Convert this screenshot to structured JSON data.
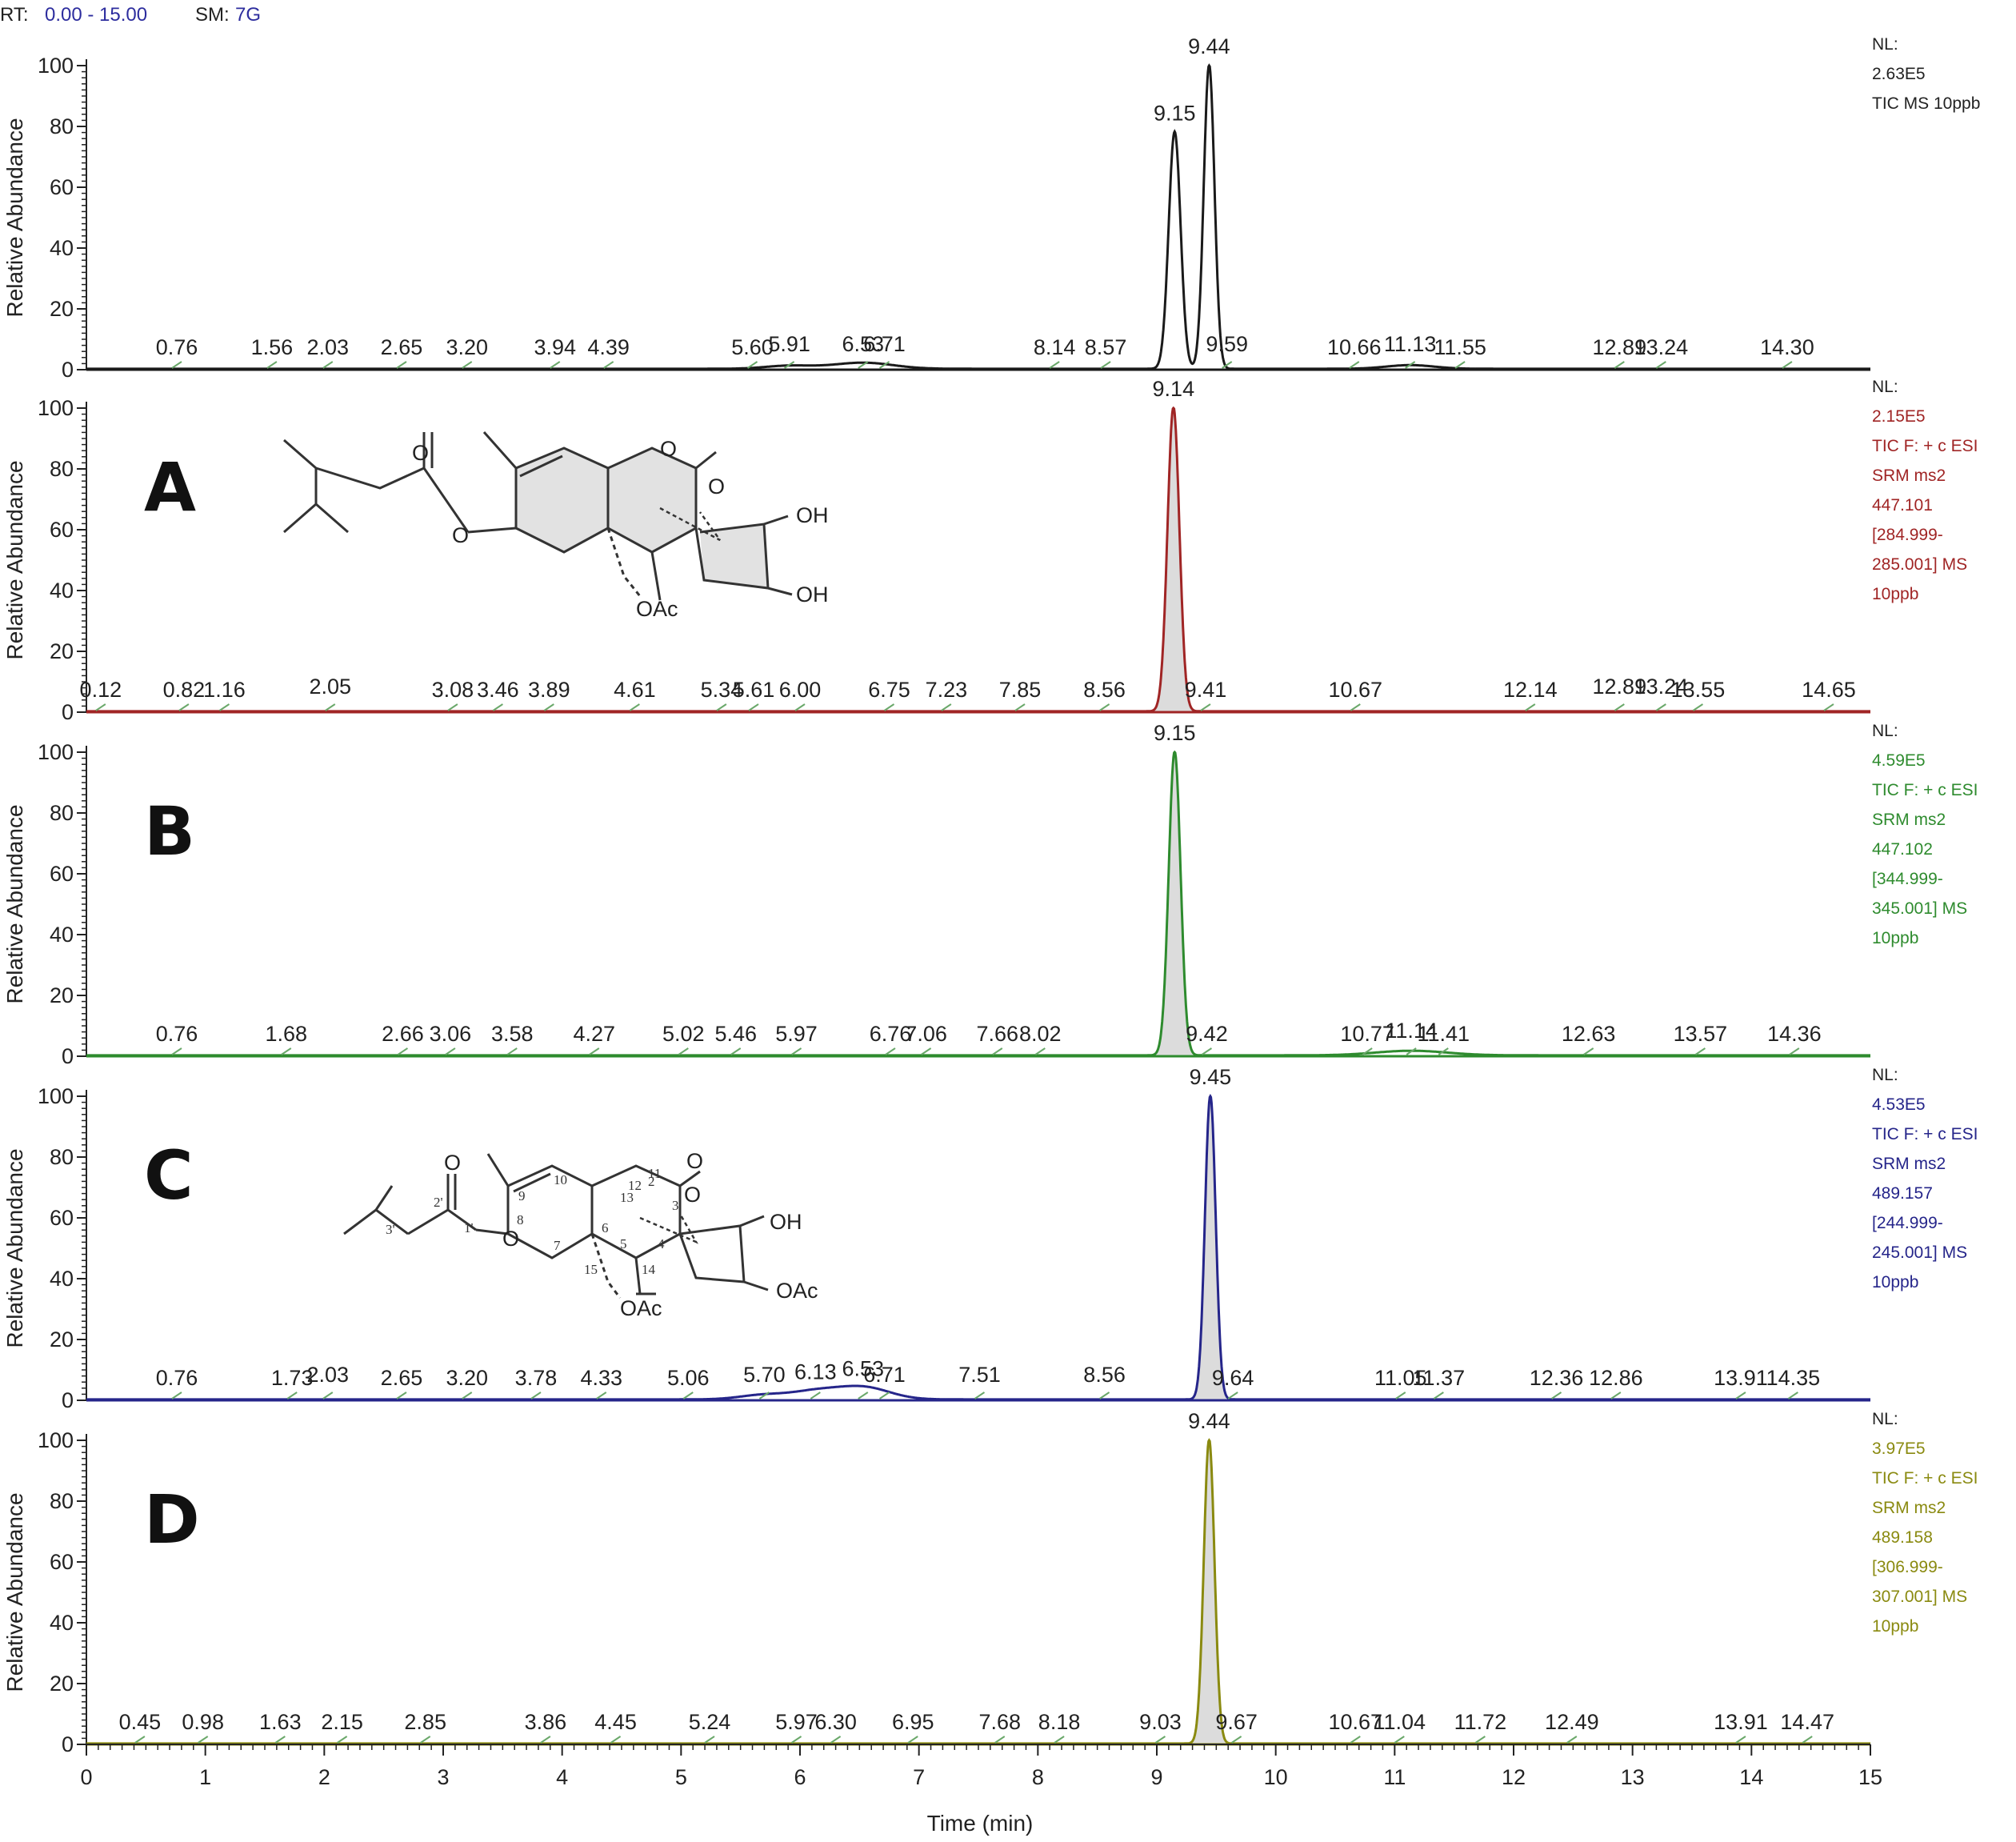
{
  "header": {
    "rt_label": "RT:",
    "rt_range": "0.00 - 15.00",
    "sm_label": "SM:",
    "sm_value": "7G"
  },
  "chart_data": {
    "type": "line",
    "xlabel": "Time (min)",
    "xlim": [
      0,
      15
    ],
    "xticks": [
      0,
      1,
      2,
      3,
      4,
      5,
      6,
      7,
      8,
      9,
      10,
      11,
      12,
      13,
      14,
      15
    ],
    "panels": [
      {
        "id": "tic",
        "letter": "",
        "color": "#1a1a1a",
        "ylabel": "Relative Abundance",
        "ylim": [
          0,
          100
        ],
        "yticks": [
          0,
          20,
          40,
          60,
          80,
          100
        ],
        "side_text": [
          "NL:",
          "2.63E5",
          "TIC  MS  10ppb"
        ],
        "peaks": [
          {
            "rt": 9.15,
            "height": 78,
            "width": 0.05
          },
          {
            "rt": 9.44,
            "height": 100,
            "width": 0.045
          },
          {
            "rt": 6.53,
            "height": 2,
            "width": 0.25
          },
          {
            "rt": 5.91,
            "height": 1,
            "width": 0.2
          },
          {
            "rt": 11.13,
            "height": 1.2,
            "width": 0.2
          }
        ],
        "peak_labels": [
          {
            "rt": 0.76,
            "label": "0.76",
            "y": 5
          },
          {
            "rt": 1.56,
            "label": "1.56",
            "y": 5
          },
          {
            "rt": 2.03,
            "label": "2.03",
            "y": 5
          },
          {
            "rt": 2.65,
            "label": "2.65",
            "y": 5
          },
          {
            "rt": 3.2,
            "label": "3.20",
            "y": 5
          },
          {
            "rt": 3.94,
            "label": "3.94",
            "y": 5
          },
          {
            "rt": 4.39,
            "label": "4.39",
            "y": 5
          },
          {
            "rt": 5.6,
            "label": "5.60",
            "y": 5
          },
          {
            "rt": 5.91,
            "label": "5.91",
            "y": 6
          },
          {
            "rt": 6.53,
            "label": "6.53",
            "y": 6
          },
          {
            "rt": 6.71,
            "label": "6.71",
            "y": 6
          },
          {
            "rt": 8.14,
            "label": "8.14",
            "y": 5
          },
          {
            "rt": 8.57,
            "label": "8.57",
            "y": 5
          },
          {
            "rt": 9.15,
            "label": "9.15",
            "y": 82
          },
          {
            "rt": 9.44,
            "label": "9.44",
            "y": 104
          },
          {
            "rt": 9.59,
            "label": "9.59",
            "y": 6
          },
          {
            "rt": 10.66,
            "label": "10.66",
            "y": 5
          },
          {
            "rt": 11.13,
            "label": "11.13",
            "y": 6
          },
          {
            "rt": 11.55,
            "label": "11.55",
            "y": 5
          },
          {
            "rt": 12.89,
            "label": "12.89",
            "y": 5
          },
          {
            "rt": 13.24,
            "label": "13.24",
            "y": 5
          },
          {
            "rt": 14.3,
            "label": "14.30",
            "y": 5
          }
        ]
      },
      {
        "id": "A",
        "letter": "A",
        "color": "#a02525",
        "ylabel": "Relative Abundance",
        "ylim": [
          0,
          100
        ],
        "yticks": [
          0,
          20,
          40,
          60,
          80,
          100
        ],
        "side_text": [
          "NL:",
          "2.15E5",
          "TIC F: + c ESI",
          "SRM ms2",
          "447.101",
          "[284.999-",
          "285.001]  MS",
          "10ppb"
        ],
        "peaks": [
          {
            "rt": 9.14,
            "height": 100,
            "width": 0.05
          }
        ],
        "peak_labels": [
          {
            "rt": 0.12,
            "label": "0.12",
            "y": 5
          },
          {
            "rt": 0.82,
            "label": "0.82",
            "y": 5
          },
          {
            "rt": 1.16,
            "label": "1.16",
            "y": 5
          },
          {
            "rt": 2.05,
            "label": "2.05",
            "y": 6
          },
          {
            "rt": 3.08,
            "label": "3.08",
            "y": 5
          },
          {
            "rt": 3.46,
            "label": "3.46",
            "y": 5
          },
          {
            "rt": 3.89,
            "label": "3.89",
            "y": 5
          },
          {
            "rt": 4.61,
            "label": "4.61",
            "y": 5
          },
          {
            "rt": 5.34,
            "label": "5.34",
            "y": 5
          },
          {
            "rt": 5.61,
            "label": "5.61",
            "y": 5
          },
          {
            "rt": 6.0,
            "label": "6.00",
            "y": 5
          },
          {
            "rt": 6.75,
            "label": "6.75",
            "y": 5
          },
          {
            "rt": 7.23,
            "label": "7.23",
            "y": 5
          },
          {
            "rt": 7.85,
            "label": "7.85",
            "y": 5
          },
          {
            "rt": 8.56,
            "label": "8.56",
            "y": 5
          },
          {
            "rt": 9.14,
            "label": "9.14",
            "y": 104
          },
          {
            "rt": 9.41,
            "label": "9.41",
            "y": 5
          },
          {
            "rt": 10.67,
            "label": "10.67",
            "y": 5
          },
          {
            "rt": 12.14,
            "label": "12.14",
            "y": 5
          },
          {
            "rt": 12.89,
            "label": "12.89",
            "y": 6
          },
          {
            "rt": 13.24,
            "label": "13.24",
            "y": 6
          },
          {
            "rt": 13.55,
            "label": "13.55",
            "y": 5
          },
          {
            "rt": 14.65,
            "label": "14.65",
            "y": 5
          }
        ]
      },
      {
        "id": "B",
        "letter": "B",
        "color": "#2e8b2e",
        "ylabel": "Relative Abundance",
        "ylim": [
          0,
          100
        ],
        "yticks": [
          0,
          20,
          40,
          60,
          80,
          100
        ],
        "side_text": [
          "NL:",
          "4.59E5",
          "TIC F: + c ESI",
          "SRM ms2",
          "447.102",
          "[344.999-",
          "345.001]  MS",
          "10ppb"
        ],
        "peaks": [
          {
            "rt": 9.15,
            "height": 100,
            "width": 0.05
          },
          {
            "rt": 11.14,
            "height": 1.5,
            "width": 0.3
          }
        ],
        "peak_labels": [
          {
            "rt": 0.76,
            "label": "0.76",
            "y": 5
          },
          {
            "rt": 1.68,
            "label": "1.68",
            "y": 5
          },
          {
            "rt": 2.66,
            "label": "2.66",
            "y": 5
          },
          {
            "rt": 3.06,
            "label": "3.06",
            "y": 5
          },
          {
            "rt": 3.58,
            "label": "3.58",
            "y": 5
          },
          {
            "rt": 4.27,
            "label": "4.27",
            "y": 5
          },
          {
            "rt": 5.02,
            "label": "5.02",
            "y": 5
          },
          {
            "rt": 5.46,
            "label": "5.46",
            "y": 5
          },
          {
            "rt": 5.97,
            "label": "5.97",
            "y": 5
          },
          {
            "rt": 6.76,
            "label": "6.76",
            "y": 5
          },
          {
            "rt": 7.06,
            "label": "7.06",
            "y": 5
          },
          {
            "rt": 7.66,
            "label": "7.66",
            "y": 5
          },
          {
            "rt": 8.02,
            "label": "8.02",
            "y": 5
          },
          {
            "rt": 9.15,
            "label": "9.15",
            "y": 104
          },
          {
            "rt": 9.42,
            "label": "9.42",
            "y": 5
          },
          {
            "rt": 10.77,
            "label": "10.77",
            "y": 5
          },
          {
            "rt": 11.14,
            "label": "11.14",
            "y": 6
          },
          {
            "rt": 11.41,
            "label": "11.41",
            "y": 5
          },
          {
            "rt": 12.63,
            "label": "12.63",
            "y": 5
          },
          {
            "rt": 13.57,
            "label": "13.57",
            "y": 5
          },
          {
            "rt": 14.36,
            "label": "14.36",
            "y": 5
          }
        ]
      },
      {
        "id": "C",
        "letter": "C",
        "color": "#25258a",
        "ylabel": "Relative Abundance",
        "ylim": [
          0,
          100
        ],
        "yticks": [
          0,
          20,
          40,
          60,
          80,
          100
        ],
        "side_text": [
          "NL:",
          "4.53E5",
          "TIC F: + c ESI",
          "SRM ms2",
          "489.157",
          "[244.999-",
          "245.001]  MS",
          "10ppb"
        ],
        "peaks": [
          {
            "rt": 9.45,
            "height": 100,
            "width": 0.045
          },
          {
            "rt": 6.53,
            "height": 4,
            "width": 0.22
          },
          {
            "rt": 6.13,
            "height": 2.5,
            "width": 0.2
          },
          {
            "rt": 5.7,
            "height": 1.5,
            "width": 0.2
          }
        ],
        "peak_labels": [
          {
            "rt": 0.76,
            "label": "0.76",
            "y": 5
          },
          {
            "rt": 1.73,
            "label": "1.73",
            "y": 5
          },
          {
            "rt": 2.03,
            "label": "2.03",
            "y": 6
          },
          {
            "rt": 2.65,
            "label": "2.65",
            "y": 5
          },
          {
            "rt": 3.2,
            "label": "3.20",
            "y": 5
          },
          {
            "rt": 3.78,
            "label": "3.78",
            "y": 5
          },
          {
            "rt": 4.33,
            "label": "4.33",
            "y": 5
          },
          {
            "rt": 5.06,
            "label": "5.06",
            "y": 5
          },
          {
            "rt": 5.7,
            "label": "5.70",
            "y": 6
          },
          {
            "rt": 6.13,
            "label": "6.13",
            "y": 7
          },
          {
            "rt": 6.53,
            "label": "6.53",
            "y": 8
          },
          {
            "rt": 6.71,
            "label": "6.71",
            "y": 6
          },
          {
            "rt": 7.51,
            "label": "7.51",
            "y": 6
          },
          {
            "rt": 8.56,
            "label": "8.56",
            "y": 6
          },
          {
            "rt": 9.45,
            "label": "9.45",
            "y": 104
          },
          {
            "rt": 9.64,
            "label": "9.64",
            "y": 5
          },
          {
            "rt": 11.05,
            "label": "11.05",
            "y": 5
          },
          {
            "rt": 11.37,
            "label": "11.37",
            "y": 5
          },
          {
            "rt": 12.36,
            "label": "12.36",
            "y": 5
          },
          {
            "rt": 12.86,
            "label": "12.86",
            "y": 5
          },
          {
            "rt": 13.91,
            "label": "13.91",
            "y": 5
          },
          {
            "rt": 14.35,
            "label": "14.35",
            "y": 5
          }
        ]
      },
      {
        "id": "D",
        "letter": "D",
        "color": "#8a8a10",
        "ylabel": "Relative Abundance",
        "ylim": [
          0,
          100
        ],
        "yticks": [
          0,
          20,
          40,
          60,
          80,
          100
        ],
        "side_text": [
          "NL:",
          "3.97E5",
          "TIC F: + c ESI",
          "SRM ms2",
          "489.158",
          "[306.999-",
          "307.001]  MS",
          "10ppb"
        ],
        "peaks": [
          {
            "rt": 9.44,
            "height": 100,
            "width": 0.045
          }
        ],
        "peak_labels": [
          {
            "rt": 0.45,
            "label": "0.45",
            "y": 5
          },
          {
            "rt": 0.98,
            "label": "0.98",
            "y": 5
          },
          {
            "rt": 1.63,
            "label": "1.63",
            "y": 5
          },
          {
            "rt": 2.15,
            "label": "2.15",
            "y": 5
          },
          {
            "rt": 2.85,
            "label": "2.85",
            "y": 5
          },
          {
            "rt": 3.86,
            "label": "3.86",
            "y": 5
          },
          {
            "rt": 4.45,
            "label": "4.45",
            "y": 5
          },
          {
            "rt": 5.24,
            "label": "5.24",
            "y": 5
          },
          {
            "rt": 5.97,
            "label": "5.97",
            "y": 5
          },
          {
            "rt": 6.3,
            "label": "6.30",
            "y": 5
          },
          {
            "rt": 6.95,
            "label": "6.95",
            "y": 5
          },
          {
            "rt": 7.68,
            "label": "7.68",
            "y": 5
          },
          {
            "rt": 8.18,
            "label": "8.18",
            "y": 5
          },
          {
            "rt": 9.03,
            "label": "9.03",
            "y": 5
          },
          {
            "rt": 9.44,
            "label": "9.44",
            "y": 104
          },
          {
            "rt": 9.67,
            "label": "9.67",
            "y": 5
          },
          {
            "rt": 10.67,
            "label": "10.67",
            "y": 5
          },
          {
            "rt": 11.04,
            "label": "11.04",
            "y": 5
          },
          {
            "rt": 11.72,
            "label": "11.72",
            "y": 5
          },
          {
            "rt": 12.49,
            "label": "12.49",
            "y": 5
          },
          {
            "rt": 13.91,
            "label": "13.91",
            "y": 5
          },
          {
            "rt": 14.47,
            "label": "14.47",
            "y": 5
          }
        ]
      }
    ]
  },
  "structures": {
    "A": {
      "oh_top": "OH",
      "oh_bottom": "OH",
      "oac": "OAc",
      "ring_o": "O",
      "epoxy_o": "O",
      "ester_o": "O",
      "carbonyl_o": "O"
    },
    "C": {
      "oh_top": "OH",
      "oac_right": "OAc",
      "oac": "OAc",
      "ring_o": "O",
      "epoxy_o": "O",
      "ester_o": "O",
      "carbonyl_o": "O",
      "numbers": [
        "10",
        "9",
        "8",
        "7",
        "6",
        "5",
        "4",
        "3",
        "2",
        "13",
        "12",
        "11",
        "14",
        "15",
        "1'",
        "2'",
        "3'"
      ]
    }
  }
}
